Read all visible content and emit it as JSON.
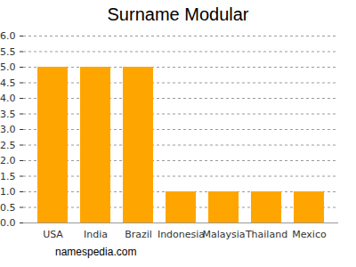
{
  "chart_data": {
    "type": "bar",
    "title": "Surname Modular",
    "caption": "namespedia.com",
    "categories": [
      "USA",
      "India",
      "Brazil",
      "Indonesia",
      "Malaysia",
      "Thailand",
      "Mexico"
    ],
    "values": [
      5,
      5,
      5,
      1,
      1,
      1,
      1
    ],
    "color": "#ffa500",
    "ylim": [
      0,
      6
    ],
    "yticks": [
      0,
      0.5,
      1,
      1.5,
      2,
      2.5,
      3,
      3.5,
      4,
      4.5,
      5,
      5.5,
      6
    ],
    "grid": true
  }
}
